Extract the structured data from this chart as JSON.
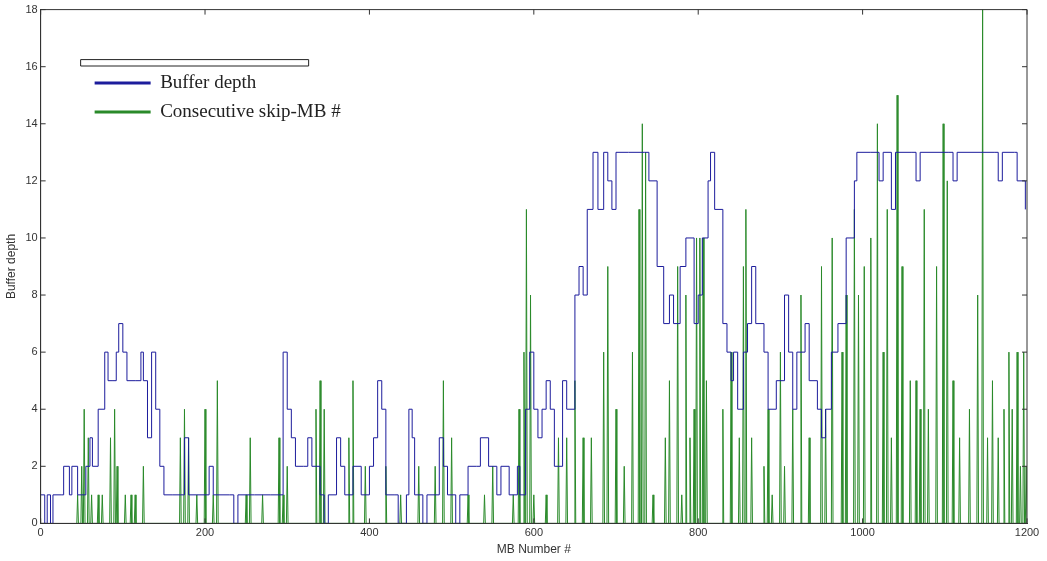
{
  "chart_data": {
    "type": "line",
    "xlabel": "MB Number #",
    "ylabel": "Buffer depth",
    "xlim": [
      0,
      1200
    ],
    "xticks": [
      0,
      200,
      400,
      600,
      800,
      1000,
      1200
    ],
    "ylim": [
      0,
      18
    ],
    "yticks": [
      0,
      2,
      4,
      6,
      8,
      10,
      12,
      14,
      16,
      18
    ],
    "grid": false,
    "legend": "top left",
    "marker": "none",
    "line_style": "solid",
    "series": [
      {
        "name": "Buffer depth",
        "color": "#1c1c9c",
        "type": "step",
        "x": [
          0,
          5,
          8,
          12,
          15,
          25,
          28,
          35,
          38,
          45,
          50,
          55,
          60,
          63,
          70,
          78,
          82,
          88,
          92,
          95,
          100,
          105,
          115,
          122,
          125,
          130,
          135,
          140,
          145,
          150,
          160,
          170,
          175,
          180,
          190,
          200,
          205,
          210,
          230,
          235,
          240,
          260,
          280,
          295,
          300,
          305,
          310,
          320,
          325,
          330,
          340,
          345,
          350,
          360,
          365,
          370,
          380,
          390,
          400,
          405,
          410,
          415,
          420,
          430,
          435,
          445,
          448,
          452,
          455,
          465,
          470,
          480,
          485,
          490,
          495,
          505,
          510,
          520,
          530,
          535,
          545,
          555,
          560,
          570,
          580,
          583,
          590,
          595,
          600,
          605,
          610,
          615,
          620,
          625,
          635,
          640,
          650,
          655,
          660,
          665,
          672,
          678,
          685,
          690,
          695,
          700,
          715,
          735,
          740,
          750,
          758,
          765,
          770,
          778,
          785,
          795,
          800,
          805,
          812,
          815,
          820,
          830,
          835,
          840,
          843,
          848,
          855,
          860,
          865,
          870,
          880,
          885,
          895,
          905,
          910,
          915,
          920,
          930,
          935,
          945,
          950,
          955,
          962,
          970,
          980,
          990,
          993,
          1010,
          1020,
          1025,
          1035,
          1040,
          1060,
          1065,
          1070,
          1105,
          1110,
          1115,
          1160,
          1165,
          1170,
          1185,
          1188,
          1195,
          1198
        ],
        "values": [
          1,
          0,
          1,
          0,
          1,
          1,
          2,
          1,
          2,
          1,
          1,
          2,
          3,
          2,
          4,
          6,
          5,
          5,
          6,
          7,
          6,
          5,
          5,
          6,
          5,
          3,
          6,
          4,
          2,
          1,
          1,
          1,
          3,
          1,
          1,
          1,
          2,
          1,
          1,
          0,
          1,
          1,
          1,
          6,
          4,
          3,
          2,
          2,
          3,
          2,
          1,
          0,
          1,
          3,
          2,
          1,
          2,
          1,
          2,
          3,
          5,
          4,
          1,
          1,
          0,
          1,
          4,
          3,
          1,
          0,
          1,
          1,
          3,
          2,
          1,
          0,
          1,
          2,
          2,
          3,
          2,
          1,
          2,
          1,
          2,
          1,
          4,
          6,
          4,
          3,
          4,
          5,
          4,
          2,
          5,
          4,
          8,
          9,
          8,
          11,
          13,
          11,
          13,
          12,
          11,
          13,
          13,
          13,
          12,
          9,
          7,
          8,
          7,
          9,
          10,
          7,
          8,
          10,
          12,
          13,
          11,
          7,
          6,
          5,
          6,
          4,
          6,
          7,
          9,
          7,
          6,
          4,
          5,
          8,
          6,
          4,
          6,
          7,
          5,
          4,
          3,
          4,
          6,
          7,
          10,
          12,
          13,
          13,
          12,
          13,
          11,
          13,
          13,
          12,
          13,
          13,
          12,
          13,
          13,
          12,
          13,
          13,
          12,
          12,
          11
        ]
      },
      {
        "name": "Consecutive skip-MB #",
        "color": "#2a8a2a",
        "x": [
          44,
          45,
          46,
          49,
          50,
          51,
          52,
          53,
          54,
          57,
          58,
          59,
          61,
          62,
          63,
          69,
          70,
          71,
          74,
          75,
          76,
          84,
          85,
          86,
          89,
          90,
          91,
          92,
          93,
          94,
          102,
          103,
          104,
          109,
          110,
          111,
          114,
          115,
          116,
          124,
          125,
          126,
          169,
          170,
          171,
          174,
          175,
          176,
          179,
          180,
          181,
          189,
          190,
          191,
          199,
          200,
          201,
          209,
          210,
          211,
          214,
          215,
          216,
          249,
          250,
          251,
          254,
          255,
          256,
          269,
          270,
          271,
          289,
          290,
          291,
          294,
          295,
          296,
          299,
          300,
          301,
          334,
          335,
          336,
          339,
          340,
          341,
          344,
          345,
          346,
          374,
          375,
          376,
          379,
          380,
          381,
          394,
          395,
          396,
          419,
          420,
          421,
          437,
          438,
          439,
          459,
          460,
          461,
          479,
          480,
          481,
          489,
          490,
          491,
          499,
          500,
          501,
          519,
          520,
          521,
          539,
          540,
          541,
          549,
          550,
          551,
          574,
          575,
          576,
          581,
          582,
          583,
          587,
          588,
          589,
          590,
          591,
          592,
          595,
          596,
          597,
          599,
          600,
          601,
          614,
          615,
          616,
          629,
          630,
          631,
          639,
          640,
          641,
          649,
          650,
          651,
          659,
          660,
          661,
          669,
          670,
          671,
          684,
          685,
          686,
          689,
          690,
          691,
          699,
          700,
          701,
          709,
          710,
          711,
          719,
          720,
          721,
          727,
          728,
          729,
          731,
          732,
          733,
          735,
          736,
          737,
          744,
          745,
          746,
          759,
          760,
          761,
          764,
          765,
          766,
          774,
          775,
          776,
          779,
          780,
          781,
          784,
          785,
          786,
          789,
          790,
          791,
          794,
          795,
          796,
          797,
          798,
          799,
          801,
          802,
          803,
          805,
          806,
          807,
          809,
          810,
          811,
          829,
          830,
          831,
          839,
          840,
          841,
          849,
          850,
          851,
          854,
          855,
          856,
          857,
          858,
          859,
          864,
          865,
          866,
          879,
          880,
          881,
          884,
          885,
          886,
          889,
          890,
          891,
          899,
          900,
          901,
          904,
          905,
          906,
          914,
          915,
          916,
          924,
          925,
          926,
          934,
          935,
          936,
          949,
          950,
          951,
          954,
          955,
          956,
          962,
          963,
          964,
          974,
          975,
          976,
          979,
          980,
          981,
          989,
          990,
          991,
          994,
          995,
          996,
          1001,
          1002,
          1003,
          1009,
          1010,
          1011,
          1017,
          1018,
          1019,
          1024,
          1025,
          1026,
          1029,
          1030,
          1031,
          1034,
          1035,
          1036,
          1041,
          1042,
          1043,
          1047,
          1048,
          1049,
          1057,
          1058,
          1059,
          1064,
          1065,
          1066,
          1069,
          1070,
          1071,
          1074,
          1075,
          1076,
          1079,
          1080,
          1081,
          1089,
          1090,
          1091,
          1097,
          1098,
          1099,
          1102,
          1103,
          1104,
          1109,
          1110,
          1111,
          1117,
          1118,
          1119,
          1129,
          1130,
          1131,
          1139,
          1140,
          1141,
          1145,
          1146,
          1147,
          1151,
          1152,
          1153,
          1157,
          1158,
          1159,
          1164,
          1165,
          1166,
          1171,
          1172,
          1173,
          1177,
          1178,
          1179,
          1181,
          1182,
          1183,
          1187,
          1188,
          1189,
          1191,
          1192,
          1193,
          1195,
          1196,
          1197,
          1198,
          1199,
          1200
        ],
        "values": [
          0,
          1,
          0,
          0,
          2,
          0,
          0,
          4,
          0,
          0,
          3,
          0,
          0,
          1,
          0,
          0,
          1,
          0,
          0,
          1,
          0,
          0,
          3,
          0,
          0,
          4,
          0,
          0,
          2,
          0,
          0,
          1,
          0,
          0,
          1,
          0,
          0,
          1,
          0,
          0,
          2,
          0,
          0,
          3,
          0,
          0,
          4,
          0,
          0,
          3,
          0,
          0,
          1,
          0,
          0,
          4,
          0,
          0,
          1,
          0,
          0,
          5,
          0,
          0,
          1,
          0,
          0,
          3,
          0,
          0,
          1,
          0,
          0,
          3,
          0,
          0,
          1,
          0,
          0,
          2,
          0,
          0,
          4,
          0,
          0,
          5,
          0,
          0,
          4,
          0,
          0,
          3,
          0,
          0,
          5,
          0,
          0,
          2,
          0,
          0,
          2,
          0,
          0,
          1,
          0,
          0,
          2,
          0,
          0,
          2,
          0,
          0,
          5,
          0,
          0,
          3,
          0,
          0,
          1,
          0,
          0,
          1,
          0,
          0,
          2,
          0,
          0,
          1,
          0,
          0,
          4,
          0,
          0,
          6,
          0,
          0,
          11,
          0,
          0,
          8,
          0,
          0,
          1,
          0,
          0,
          1,
          0,
          0,
          3,
          0,
          0,
          3,
          0,
          0,
          5,
          0,
          0,
          3,
          0,
          0,
          3,
          0,
          0,
          6,
          0,
          0,
          9,
          0,
          0,
          4,
          0,
          0,
          2,
          0,
          0,
          6,
          0,
          0,
          11,
          0,
          0,
          14,
          0,
          0,
          13,
          0,
          0,
          1,
          0,
          0,
          3,
          0,
          0,
          5,
          0,
          0,
          9,
          0,
          0,
          1,
          0,
          0,
          8,
          0,
          0,
          3,
          0,
          0,
          4,
          0,
          0,
          10,
          0,
          0,
          10,
          0,
          0,
          10,
          0,
          0,
          5,
          0,
          0,
          4,
          0,
          0,
          6,
          0,
          0,
          3,
          0,
          0,
          9,
          0,
          0,
          11,
          0,
          0,
          3,
          0,
          0,
          2,
          0,
          0,
          4,
          0,
          0,
          1,
          0,
          0,
          6,
          0,
          0,
          2,
          0,
          0,
          4,
          0,
          0,
          8,
          0,
          0,
          3,
          0,
          0,
          9,
          0,
          0,
          4,
          0,
          0,
          10,
          0,
          0,
          6,
          0,
          0,
          8,
          0,
          0,
          11,
          0,
          0,
          8,
          0,
          0,
          9,
          0,
          0,
          10,
          0,
          0,
          14,
          0,
          0,
          6,
          0,
          0,
          11,
          0,
          0,
          3,
          0,
          0,
          15,
          0,
          0,
          9,
          0,
          0,
          5,
          0,
          0,
          5,
          0,
          0,
          4,
          0,
          0,
          11,
          0,
          0,
          4,
          0,
          0,
          9,
          0,
          0,
          14,
          0,
          0,
          12,
          0,
          0,
          5,
          0,
          0,
          3,
          0,
          0,
          4,
          0,
          0,
          8,
          0,
          0,
          18,
          0,
          0,
          3,
          0,
          0,
          5,
          0,
          0,
          3,
          0,
          0,
          4,
          0,
          0,
          6,
          0,
          0,
          4,
          0,
          0,
          6,
          0,
          0,
          2,
          0,
          0,
          6,
          0,
          0,
          2,
          0
        ]
      }
    ]
  }
}
